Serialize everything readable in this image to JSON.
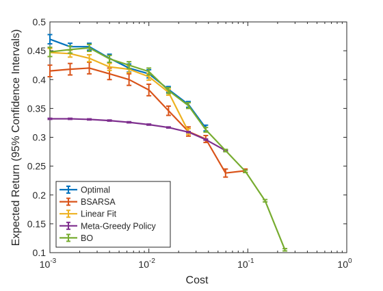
{
  "chart_data": {
    "type": "line",
    "title": "",
    "xlabel": "Cost",
    "ylabel": "Expected Return (95% Confidence Intervals)",
    "xscale": "log",
    "xlim": [
      0.001,
      1
    ],
    "ylim": [
      0.1,
      0.5
    ],
    "x_ticks": [
      0.001,
      0.01,
      0.1,
      1
    ],
    "x_tick_labels": [
      {
        "base": "10",
        "exp": "-3"
      },
      {
        "base": "10",
        "exp": "-2"
      },
      {
        "base": "10",
        "exp": "-1"
      },
      {
        "base": "10",
        "exp": "0"
      }
    ],
    "y_ticks": [
      0.1,
      0.15,
      0.2,
      0.25,
      0.3,
      0.35,
      0.4,
      0.45,
      0.5
    ],
    "y_tick_labels": [
      "0.1",
      "0.15",
      "0.2",
      "0.25",
      "0.3",
      "0.35",
      "0.4",
      "0.45",
      "0.5"
    ],
    "grid": false,
    "legend_position": "bottom-left",
    "series": [
      {
        "name": "Optimal",
        "color": "#0072BD",
        "x": [
          0.001,
          0.0016,
          0.0025,
          0.004,
          0.0063,
          0.01,
          0.0158,
          0.0251,
          0.0376
        ],
        "y": [
          0.47,
          0.457,
          0.457,
          0.437,
          0.42,
          0.41,
          0.383,
          0.357,
          0.316
        ],
        "err": [
          0.008,
          0.006,
          0.006,
          0.007,
          0.007,
          0.007,
          0.005,
          0.005,
          0.005
        ]
      },
      {
        "name": "BSARSA",
        "color": "#D95319",
        "x": [
          0.001,
          0.0016,
          0.0025,
          0.004,
          0.0063,
          0.01,
          0.0158,
          0.0251,
          0.0376,
          0.0596,
          0.0944
        ],
        "y": [
          0.415,
          0.418,
          0.42,
          0.41,
          0.4,
          0.382,
          0.346,
          0.31,
          0.297,
          0.238,
          0.242
        ],
        "err": [
          0.01,
          0.01,
          0.01,
          0.01,
          0.01,
          0.01,
          0.008,
          0.008,
          0.006,
          0.007,
          0.003
        ]
      },
      {
        "name": "Linear Fit",
        "color": "#EDB120",
        "x": [
          0.001,
          0.0016,
          0.0025,
          0.004,
          0.0063,
          0.01,
          0.0158,
          0.0251
        ],
        "y": [
          0.447,
          0.445,
          0.437,
          0.422,
          0.418,
          0.405,
          0.378,
          0.31
        ],
        "err": [
          0.007,
          0.006,
          0.006,
          0.006,
          0.006,
          0.006,
          0.005,
          0.005
        ]
      },
      {
        "name": "Meta-Greedy Policy",
        "color": "#7E2F8E",
        "x": [
          0.001,
          0.0016,
          0.0025,
          0.004,
          0.0063,
          0.01,
          0.0158,
          0.0251,
          0.0376,
          0.0596
        ],
        "y": [
          0.332,
          0.332,
          0.331,
          0.329,
          0.326,
          0.322,
          0.317,
          0.309,
          0.296,
          0.277
        ],
        "err": [
          0.001,
          0.001,
          0.001,
          0.001,
          0.001,
          0.001,
          0.001,
          0.001,
          0.001,
          0.001
        ]
      },
      {
        "name": "BO",
        "color": "#77AC30",
        "x": [
          0.001,
          0.0016,
          0.0025,
          0.004,
          0.0063,
          0.01,
          0.0158,
          0.0251,
          0.0376,
          0.0596,
          0.0944,
          0.1496,
          0.2371
        ],
        "y": [
          0.448,
          0.452,
          0.455,
          0.436,
          0.425,
          0.414,
          0.381,
          0.355,
          0.313,
          0.277,
          0.241,
          0.19,
          0.105
        ],
        "err": [
          0.008,
          0.006,
          0.006,
          0.006,
          0.006,
          0.006,
          0.005,
          0.005,
          0.004,
          0.002,
          0.002,
          0.002,
          0.002
        ]
      }
    ]
  }
}
